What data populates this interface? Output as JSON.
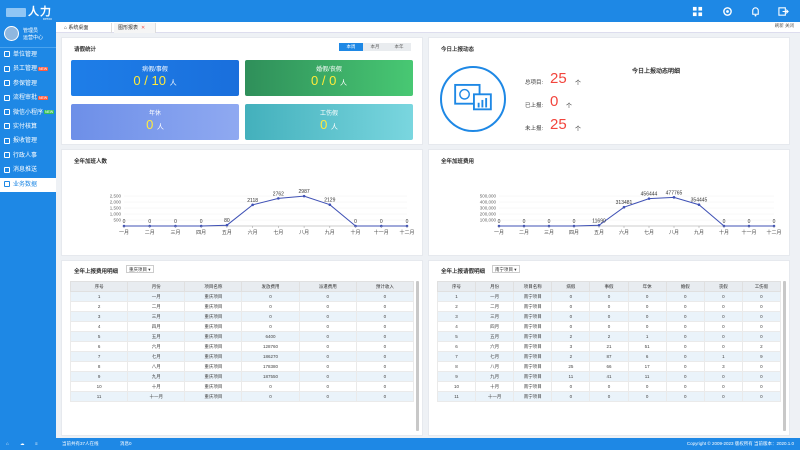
{
  "app": {
    "logo_text": "人力",
    "logo_sub": "DEMO"
  },
  "user": {
    "name": "管理员",
    "role": "运营中心"
  },
  "sidebar": {
    "items": [
      {
        "label": "单位管理",
        "badge": ""
      },
      {
        "label": "员工管理",
        "badge": "NEW"
      },
      {
        "label": "参保管理",
        "badge": ""
      },
      {
        "label": "流程审批",
        "badge": "NEW"
      },
      {
        "label": "微信小程序",
        "badge": "NEW"
      },
      {
        "label": "实付核算",
        "badge": ""
      },
      {
        "label": "报收管理",
        "badge": ""
      },
      {
        "label": "行政人事",
        "badge": ""
      },
      {
        "label": "消息推送",
        "badge": ""
      },
      {
        "label": "业务数据",
        "badge": ""
      }
    ]
  },
  "tabs": [
    {
      "label": "系统桌面"
    },
    {
      "label": "图形报表"
    }
  ],
  "tabbar": {
    "right": "刷新 关闭"
  },
  "leave": {
    "title": "请假统计",
    "periods": [
      "本周",
      "本月",
      "本年"
    ],
    "cards": [
      {
        "label": "病假/事假",
        "value": "0 / 10",
        "unit": "人"
      },
      {
        "label": "婚假/丧假",
        "value": "0 / 0",
        "unit": "人"
      },
      {
        "label": "年休",
        "value": "0",
        "unit": "人"
      },
      {
        "label": "工伤假",
        "value": "0",
        "unit": "人"
      }
    ]
  },
  "report": {
    "title": "今日上报动态",
    "note": "今日上报动态明细",
    "rows": [
      {
        "label": "总项目:",
        "value": "25",
        "unit": "个"
      },
      {
        "label": "已上报:",
        "value": "0",
        "unit": "个"
      },
      {
        "label": "未上报:",
        "value": "25",
        "unit": "个"
      }
    ]
  },
  "chart_data": [
    {
      "type": "line",
      "title": "全年加班人数",
      "categories": [
        "一月",
        "二月",
        "三月",
        "四月",
        "五月",
        "六月",
        "七月",
        "八月",
        "九月",
        "十月",
        "十一月",
        "十二月"
      ],
      "values": [
        0,
        0,
        0,
        0,
        80,
        2118,
        2762,
        2987,
        2129,
        0,
        0,
        0
      ],
      "yticks": [
        "500",
        "1,000",
        "1,500",
        "2,000",
        "2,500"
      ],
      "ylim": [
        0,
        3000
      ]
    },
    {
      "type": "line",
      "title": "全年加班费用",
      "categories": [
        "一月",
        "二月",
        "三月",
        "四月",
        "五月",
        "六月",
        "七月",
        "八月",
        "九月",
        "十月",
        "十一月",
        "十二月"
      ],
      "values": [
        0,
        0,
        0,
        0,
        11690,
        313481,
        456444,
        477765,
        354445,
        0,
        0,
        0
      ],
      "yticks": [
        "100,000",
        "200,000",
        "300,000",
        "400,000",
        "500,000"
      ],
      "ylim": [
        0,
        500000
      ]
    }
  ],
  "table_left": {
    "title": "全年上报费用明细",
    "select": "重庆项目",
    "headers": [
      "序号",
      "月份",
      "项目名称",
      "发放费用",
      "派遣费用",
      "预计收入"
    ],
    "rows": [
      [
        "1",
        "一月",
        "重庆项目",
        "0",
        "0",
        "0"
      ],
      [
        "2",
        "二月",
        "重庆项目",
        "0",
        "0",
        "0"
      ],
      [
        "3",
        "三月",
        "重庆项目",
        "0",
        "0",
        "0"
      ],
      [
        "4",
        "四月",
        "重庆项目",
        "0",
        "0",
        "0"
      ],
      [
        "5",
        "五月",
        "重庆项目",
        "6400",
        "0",
        "0"
      ],
      [
        "6",
        "六月",
        "重庆项目",
        "128760",
        "0",
        "0"
      ],
      [
        "7",
        "七月",
        "重庆项目",
        "186270",
        "0",
        "0"
      ],
      [
        "8",
        "八月",
        "重庆项目",
        "178380",
        "0",
        "0"
      ],
      [
        "9",
        "九月",
        "重庆项目",
        "187550",
        "0",
        "0"
      ],
      [
        "10",
        "十月",
        "重庆项目",
        "0",
        "0",
        "0"
      ],
      [
        "11",
        "十一月",
        "重庆项目",
        "0",
        "0",
        "0"
      ]
    ]
  },
  "table_right": {
    "title": "全年上报请假明细",
    "select": "南宁项目",
    "headers": [
      "序号",
      "月份",
      "项目名称",
      "病假",
      "事假",
      "年休",
      "婚假",
      "丧假",
      "工伤假"
    ],
    "rows": [
      [
        "1",
        "一月",
        "南宁项目",
        "0",
        "0",
        "0",
        "0",
        "0",
        "0"
      ],
      [
        "2",
        "二月",
        "南宁项目",
        "0",
        "0",
        "0",
        "0",
        "0",
        "0"
      ],
      [
        "3",
        "三月",
        "南宁项目",
        "0",
        "0",
        "0",
        "0",
        "0",
        "0"
      ],
      [
        "4",
        "四月",
        "南宁项目",
        "0",
        "0",
        "0",
        "0",
        "0",
        "0"
      ],
      [
        "5",
        "五月",
        "南宁项目",
        "2",
        "2",
        "1",
        "0",
        "0",
        "0"
      ],
      [
        "6",
        "六月",
        "南宁项目",
        "3",
        "21",
        "51",
        "0",
        "0",
        "2"
      ],
      [
        "7",
        "七月",
        "南宁项目",
        "2",
        "87",
        "6",
        "0",
        "1",
        "9"
      ],
      [
        "8",
        "八月",
        "南宁项目",
        "25",
        "66",
        "17",
        "0",
        "3",
        "0"
      ],
      [
        "9",
        "九月",
        "南宁项目",
        "11",
        "41",
        "11",
        "0",
        "0",
        "0"
      ],
      [
        "10",
        "十月",
        "南宁项目",
        "0",
        "0",
        "0",
        "0",
        "0",
        "0"
      ],
      [
        "11",
        "十一月",
        "南宁项目",
        "0",
        "0",
        "0",
        "0",
        "0",
        "0"
      ]
    ]
  },
  "footer": {
    "online": "当前共有37人在线",
    "messages": "消息0",
    "copyright": "Copyright © 2009-2023 版权所有 当前版本：2020.1.0"
  }
}
